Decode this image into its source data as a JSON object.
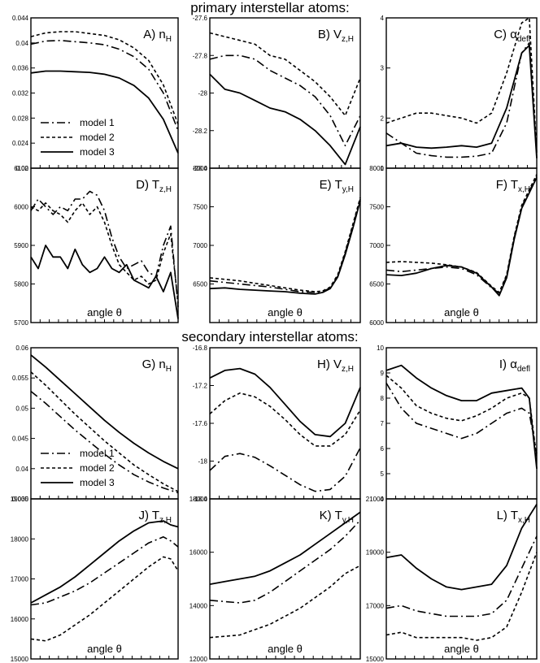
{
  "sections": [
    {
      "title": "primary interstellar atoms:"
    },
    {
      "title": "secondary interstellar atoms:"
    }
  ],
  "styles": {
    "model 1": {
      "dash": "10 4 2 4",
      "width": 1.6,
      "color": "#000000"
    },
    "model 2": {
      "dash": "4 3",
      "width": 1.6,
      "color": "#000000"
    },
    "model 3": {
      "dash": "",
      "width": 1.8,
      "color": "#000000"
    }
  },
  "chart_data": [
    {
      "id": "A",
      "type": "line",
      "panel_label": "A) n",
      "panel_sub": "H",
      "xlabel": "",
      "ylim": [
        0.02,
        0.044
      ],
      "yticks": [
        "0.02",
        "0.024",
        "0.028",
        "0.032",
        "0.036",
        "0.04",
        "0.044"
      ],
      "ytick_values": [
        0.02,
        0.024,
        0.028,
        0.032,
        0.036,
        0.04,
        0.044
      ],
      "legend": {
        "entries": [
          "model 1",
          "model 2",
          "model 3"
        ],
        "position": "lower-left"
      },
      "x": [
        0,
        0.1,
        0.2,
        0.3,
        0.4,
        0.5,
        0.6,
        0.7,
        0.8,
        0.9,
        1.0
      ],
      "series": [
        {
          "name": "model 1",
          "values": [
            0.0398,
            0.0403,
            0.0404,
            0.0402,
            0.04,
            0.0397,
            0.039,
            0.0378,
            0.0358,
            0.032,
            0.026
          ]
        },
        {
          "name": "model 2",
          "values": [
            0.041,
            0.0416,
            0.0418,
            0.0418,
            0.0415,
            0.0412,
            0.0405,
            0.0392,
            0.0372,
            0.0333,
            0.027
          ]
        },
        {
          "name": "model 3",
          "values": [
            0.0352,
            0.0355,
            0.0355,
            0.0354,
            0.0353,
            0.035,
            0.0344,
            0.0332,
            0.0312,
            0.0278,
            0.0224
          ]
        }
      ]
    },
    {
      "id": "B",
      "type": "line",
      "panel_label": "B) V",
      "panel_sub": "z,H",
      "xlabel": "",
      "ylim": [
        -28.4,
        -27.6
      ],
      "yticks": [
        "-27.6",
        "-27.8",
        "-28",
        "-28.2",
        "-28.4"
      ],
      "ytick_values": [
        -27.6,
        -27.8,
        -28,
        -28.2,
        -28.4
      ],
      "x": [
        0,
        0.1,
        0.2,
        0.3,
        0.4,
        0.5,
        0.6,
        0.7,
        0.8,
        0.9,
        1.0
      ],
      "series": [
        {
          "name": "model 1",
          "values": [
            -27.82,
            -27.8,
            -27.8,
            -27.82,
            -27.88,
            -27.92,
            -27.96,
            -28.02,
            -28.12,
            -28.28,
            -28.12
          ]
        },
        {
          "name": "model 2",
          "values": [
            -27.68,
            -27.7,
            -27.72,
            -27.74,
            -27.8,
            -27.82,
            -27.88,
            -27.94,
            -28.02,
            -28.12,
            -27.92
          ]
        },
        {
          "name": "model 3",
          "values": [
            -27.9,
            -27.98,
            -28.0,
            -28.04,
            -28.08,
            -28.1,
            -28.14,
            -28.2,
            -28.28,
            -28.38,
            -28.18
          ]
        }
      ]
    },
    {
      "id": "C",
      "type": "line",
      "panel_label": "C) α",
      "panel_sub": "defl",
      "xlabel": "",
      "ylim": [
        1,
        4
      ],
      "yticks": [
        "1",
        "2",
        "3",
        "4"
      ],
      "ytick_values": [
        1,
        2,
        3,
        4
      ],
      "x": [
        0,
        0.1,
        0.2,
        0.3,
        0.4,
        0.5,
        0.6,
        0.7,
        0.8,
        0.9,
        0.95,
        1.0
      ],
      "series": [
        {
          "name": "model 1",
          "values": [
            1.7,
            1.5,
            1.3,
            1.25,
            1.22,
            1.22,
            1.24,
            1.3,
            1.9,
            3.3,
            3.5,
            1.3
          ]
        },
        {
          "name": "model 2",
          "values": [
            1.9,
            2.0,
            2.1,
            2.1,
            2.05,
            2.0,
            1.9,
            2.1,
            2.9,
            3.9,
            4.0,
            1.3
          ]
        },
        {
          "name": "model 3",
          "values": [
            1.45,
            1.5,
            1.42,
            1.4,
            1.42,
            1.45,
            1.42,
            1.5,
            2.2,
            3.3,
            3.45,
            1.2
          ]
        }
      ]
    },
    {
      "id": "D",
      "type": "line",
      "panel_label": "D) T",
      "panel_sub": "z,H",
      "xlabel": "angle θ",
      "ylim": [
        5700,
        6100
      ],
      "yticks": [
        "5700",
        "5800",
        "5900",
        "6000",
        "6100"
      ],
      "ytick_values": [
        5700,
        5800,
        5900,
        6000,
        6100
      ],
      "x": [
        0,
        0.05,
        0.1,
        0.15,
        0.2,
        0.25,
        0.3,
        0.35,
        0.4,
        0.45,
        0.5,
        0.55,
        0.6,
        0.65,
        0.7,
        0.75,
        0.8,
        0.85,
        0.9,
        0.95,
        1.0
      ],
      "series": [
        {
          "name": "model 1",
          "values": [
            5990,
            6020,
            6000,
            5980,
            6000,
            5990,
            6020,
            6020,
            6040,
            6030,
            5990,
            5920,
            5870,
            5840,
            5850,
            5860,
            5830,
            5820,
            5900,
            5950,
            5740
          ]
        },
        {
          "name": "model 2",
          "values": [
            6000,
            5990,
            6010,
            5990,
            5980,
            5960,
            5990,
            6010,
            5980,
            6000,
            5960,
            5900,
            5850,
            5830,
            5810,
            5820,
            5800,
            5810,
            5880,
            5930,
            5750
          ]
        },
        {
          "name": "model 3",
          "values": [
            5870,
            5840,
            5900,
            5870,
            5870,
            5840,
            5890,
            5850,
            5830,
            5840,
            5870,
            5840,
            5830,
            5850,
            5810,
            5800,
            5790,
            5820,
            5780,
            5830,
            5710
          ]
        }
      ]
    },
    {
      "id": "E",
      "type": "line",
      "panel_label": "E) T",
      "panel_sub": "y,H",
      "xlabel": "angle θ",
      "ylim": [
        6000,
        8000
      ],
      "yticks": [
        "6500",
        "7000",
        "7500",
        "8000"
      ],
      "ytick_values": [
        6500,
        7000,
        7500,
        8000
      ],
      "x": [
        0,
        0.1,
        0.2,
        0.3,
        0.4,
        0.5,
        0.6,
        0.7,
        0.75,
        0.8,
        0.85,
        0.9,
        0.95,
        1.0
      ],
      "series": [
        {
          "name": "model 1",
          "values": [
            6540,
            6520,
            6500,
            6480,
            6460,
            6430,
            6400,
            6390,
            6400,
            6450,
            6600,
            6900,
            7250,
            7600
          ]
        },
        {
          "name": "model 2",
          "values": [
            6580,
            6560,
            6540,
            6510,
            6480,
            6450,
            6420,
            6400,
            6410,
            6460,
            6620,
            6920,
            7270,
            7620
          ]
        },
        {
          "name": "model 3",
          "values": [
            6440,
            6450,
            6430,
            6420,
            6410,
            6400,
            6380,
            6370,
            6390,
            6440,
            6590,
            6880,
            7220,
            7580
          ]
        }
      ]
    },
    {
      "id": "F",
      "type": "line",
      "panel_label": "F) T",
      "panel_sub": "x,H",
      "xlabel": "angle θ",
      "ylim": [
        6000,
        8000
      ],
      "yticks": [
        "6000",
        "6500",
        "7000",
        "7500",
        "8000"
      ],
      "ytick_values": [
        6000,
        6500,
        7000,
        7500,
        8000
      ],
      "x": [
        0,
        0.1,
        0.2,
        0.3,
        0.4,
        0.5,
        0.6,
        0.7,
        0.75,
        0.8,
        0.85,
        0.9,
        0.95,
        1.0
      ],
      "series": [
        {
          "name": "model 1",
          "values": [
            6680,
            6660,
            6680,
            6700,
            6720,
            6700,
            6620,
            6450,
            6380,
            6600,
            7100,
            7500,
            7700,
            7900
          ]
        },
        {
          "name": "model 2",
          "values": [
            6780,
            6790,
            6780,
            6770,
            6750,
            6720,
            6650,
            6470,
            6390,
            6620,
            7120,
            7520,
            7720,
            7920
          ]
        },
        {
          "name": "model 3",
          "values": [
            6620,
            6610,
            6640,
            6700,
            6740,
            6720,
            6640,
            6460,
            6350,
            6580,
            7080,
            7480,
            7680,
            7880
          ]
        }
      ]
    },
    {
      "id": "G",
      "type": "line",
      "panel_label": "G) n",
      "panel_sub": "H",
      "xlabel": "",
      "ylim": [
        0.035,
        0.06
      ],
      "yticks": [
        "0.035",
        "0.04",
        "0.045",
        "0.05",
        "0.055",
        "0.06"
      ],
      "ytick_values": [
        0.035,
        0.04,
        0.045,
        0.05,
        0.055,
        0.06
      ],
      "legend": {
        "entries": [
          "model 1",
          "model 2",
          "model 3"
        ],
        "position": "lower-left"
      },
      "x": [
        0,
        0.1,
        0.2,
        0.3,
        0.4,
        0.5,
        0.6,
        0.7,
        0.8,
        0.9,
        1.0
      ],
      "series": [
        {
          "name": "model 1",
          "values": [
            0.0528,
            0.0508,
            0.0486,
            0.0464,
            0.0444,
            0.0424,
            0.0406,
            0.039,
            0.0378,
            0.0368,
            0.036
          ]
        },
        {
          "name": "model 2",
          "values": [
            0.056,
            0.0538,
            0.0514,
            0.049,
            0.0468,
            0.0446,
            0.0426,
            0.0406,
            0.039,
            0.0375,
            0.0362
          ]
        },
        {
          "name": "model 3",
          "values": [
            0.0588,
            0.0568,
            0.0546,
            0.0524,
            0.0502,
            0.048,
            0.046,
            0.0442,
            0.0426,
            0.0412,
            0.04
          ]
        }
      ]
    },
    {
      "id": "H",
      "type": "line",
      "panel_label": "H) V",
      "panel_sub": "z,H",
      "xlabel": "",
      "ylim": [
        -18.4,
        -16.8
      ],
      "yticks": [
        "-16.8",
        "-17.2",
        "-17.6",
        "-18",
        "-18.4"
      ],
      "ytick_values": [
        -16.8,
        -17.2,
        -17.6,
        -18,
        -18.4
      ],
      "x": [
        0,
        0.1,
        0.2,
        0.3,
        0.4,
        0.5,
        0.6,
        0.7,
        0.8,
        0.9,
        1.0
      ],
      "series": [
        {
          "name": "model 1",
          "values": [
            -18.1,
            -17.95,
            -17.92,
            -17.96,
            -18.05,
            -18.15,
            -18.25,
            -18.32,
            -18.3,
            -18.16,
            -17.86
          ]
        },
        {
          "name": "model 2",
          "values": [
            -17.5,
            -17.36,
            -17.28,
            -17.32,
            -17.42,
            -17.56,
            -17.72,
            -17.84,
            -17.84,
            -17.72,
            -17.46
          ]
        },
        {
          "name": "model 3",
          "values": [
            -17.12,
            -17.04,
            -17.02,
            -17.08,
            -17.22,
            -17.4,
            -17.58,
            -17.72,
            -17.74,
            -17.6,
            -17.22
          ]
        }
      ]
    },
    {
      "id": "I",
      "type": "line",
      "panel_label": "I) α",
      "panel_sub": "defl",
      "xlabel": "",
      "ylim": [
        4,
        10
      ],
      "yticks": [
        "4",
        "5",
        "6",
        "7",
        "8",
        "9",
        "10"
      ],
      "ytick_values": [
        4,
        5,
        6,
        7,
        8,
        9,
        10
      ],
      "x": [
        0,
        0.1,
        0.2,
        0.3,
        0.4,
        0.5,
        0.6,
        0.7,
        0.8,
        0.9,
        0.95,
        1.0
      ],
      "series": [
        {
          "name": "model 1",
          "values": [
            8.6,
            7.6,
            7.0,
            6.8,
            6.6,
            6.4,
            6.6,
            7.0,
            7.4,
            7.6,
            7.4,
            5.8
          ]
        },
        {
          "name": "model 2",
          "values": [
            8.9,
            8.4,
            7.7,
            7.4,
            7.2,
            7.1,
            7.3,
            7.6,
            8.0,
            8.2,
            8.0,
            5.6
          ]
        },
        {
          "name": "model 3",
          "values": [
            9.1,
            9.3,
            8.8,
            8.4,
            8.1,
            7.9,
            7.9,
            8.2,
            8.3,
            8.4,
            8.0,
            5.2
          ]
        }
      ]
    },
    {
      "id": "J",
      "type": "line",
      "panel_label": "J) T",
      "panel_sub": "z,H",
      "xlabel": "angle θ",
      "ylim": [
        15000,
        19000
      ],
      "yticks": [
        "15000",
        "16000",
        "17000",
        "18000",
        "19000"
      ],
      "ytick_values": [
        15000,
        16000,
        17000,
        18000,
        19000
      ],
      "x": [
        0,
        0.1,
        0.2,
        0.3,
        0.4,
        0.5,
        0.6,
        0.7,
        0.8,
        0.9,
        0.95,
        1.0
      ],
      "series": [
        {
          "name": "model 1",
          "values": [
            16350,
            16400,
            16550,
            16700,
            16900,
            17150,
            17400,
            17650,
            17900,
            18050,
            17950,
            17800
          ]
        },
        {
          "name": "model 2",
          "values": [
            15500,
            15450,
            15600,
            15850,
            16100,
            16400,
            16700,
            17000,
            17300,
            17550,
            17500,
            17200
          ]
        },
        {
          "name": "model 3",
          "values": [
            16400,
            16600,
            16800,
            17050,
            17350,
            17650,
            17950,
            18200,
            18400,
            18450,
            18350,
            18300
          ]
        }
      ]
    },
    {
      "id": "K",
      "type": "line",
      "panel_label": "K) T",
      "panel_sub": "y,H",
      "xlabel": "angle θ",
      "ylim": [
        12000,
        18000
      ],
      "yticks": [
        "12000",
        "14000",
        "16000",
        "18000"
      ],
      "ytick_values": [
        12000,
        14000,
        16000,
        18000
      ],
      "x": [
        0,
        0.1,
        0.2,
        0.3,
        0.4,
        0.5,
        0.6,
        0.7,
        0.8,
        0.9,
        1.0
      ],
      "series": [
        {
          "name": "model 1",
          "values": [
            14200,
            14150,
            14100,
            14200,
            14500,
            14900,
            15300,
            15700,
            16100,
            16600,
            17200
          ]
        },
        {
          "name": "model 2",
          "values": [
            12800,
            12850,
            12900,
            13100,
            13300,
            13600,
            13900,
            14300,
            14700,
            15200,
            15500
          ]
        },
        {
          "name": "model 3",
          "values": [
            14800,
            14900,
            15000,
            15100,
            15300,
            15600,
            15900,
            16300,
            16700,
            17100,
            17500
          ]
        }
      ]
    },
    {
      "id": "L",
      "type": "line",
      "panel_label": "L) T",
      "panel_sub": "x,H",
      "xlabel": "angle θ",
      "ylim": [
        15000,
        21000
      ],
      "yticks": [
        "15000",
        "17000",
        "19000",
        "21000"
      ],
      "ytick_values": [
        15000,
        17000,
        19000,
        21000
      ],
      "x": [
        0,
        0.1,
        0.2,
        0.3,
        0.4,
        0.5,
        0.6,
        0.7,
        0.8,
        0.9,
        1.0
      ],
      "series": [
        {
          "name": "model 1",
          "values": [
            16900,
            17000,
            16800,
            16700,
            16600,
            16600,
            16600,
            16700,
            17200,
            18400,
            19600
          ]
        },
        {
          "name": "model 2",
          "values": [
            15900,
            16000,
            15800,
            15800,
            15800,
            15800,
            15700,
            15800,
            16200,
            17500,
            19000
          ]
        },
        {
          "name": "model 3",
          "values": [
            18800,
            18900,
            18400,
            18000,
            17700,
            17600,
            17700,
            17800,
            18500,
            19900,
            20800
          ]
        }
      ]
    }
  ]
}
